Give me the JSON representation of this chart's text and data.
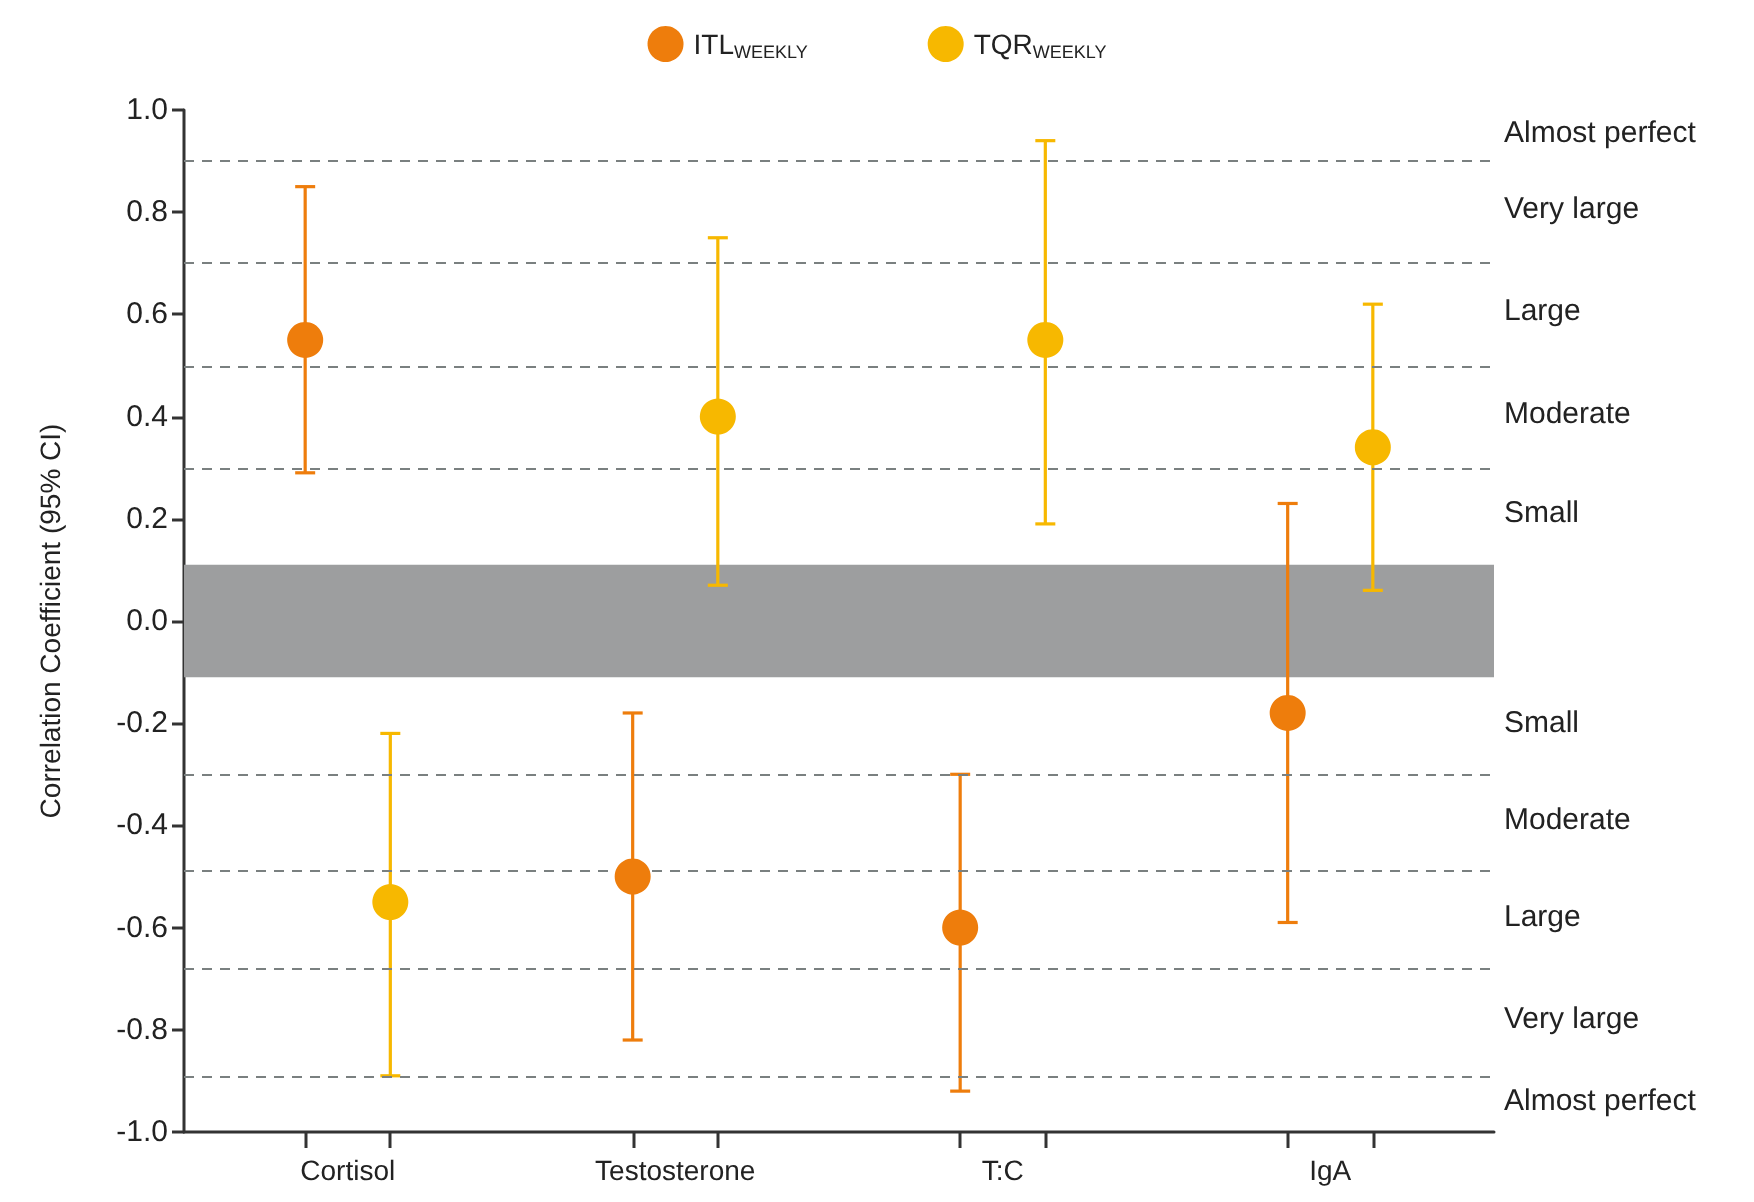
{
  "chart_data": {
    "type": "scatter",
    "ylabel": "Correlation Coefficient (95% CI)",
    "categories": [
      "Cortisol",
      "Testosterone",
      "T:C",
      "IgA"
    ],
    "series": [
      {
        "name": "ITL$_{WEEKLY}$",
        "color": "#ee7d0c",
        "values": [
          0.55,
          -0.5,
          -0.6,
          -0.18
        ],
        "errors": [
          [
            0.29,
            0.85
          ],
          [
            -0.82,
            -0.18
          ],
          [
            -0.92,
            -0.3
          ],
          [
            -0.59,
            0.23
          ]
        ]
      },
      {
        "name": "TQR$_{WEEKLY}$",
        "color": "#f7b800",
        "values": [
          -0.55,
          0.4,
          0.55,
          0.34
        ],
        "errors": [
          [
            -0.89,
            -0.22
          ],
          [
            0.07,
            0.75
          ],
          [
            0.19,
            0.94
          ],
          [
            0.06,
            0.62
          ]
        ]
      }
    ],
    "ylim": [
      -1,
      1
    ],
    "yticks": [
      {
        "value": -1,
        "label": "-1.0"
      },
      {
        "value": -0.8,
        "label": "-0.8"
      },
      {
        "value": -0.6,
        "label": "-0.6"
      },
      {
        "value": -0.4,
        "label": "-0.4"
      },
      {
        "value": -0.2,
        "label": "-0.2"
      },
      {
        "value": 0,
        "label": "0.0"
      },
      {
        "value": 0.2,
        "label": "0.2"
      },
      {
        "value": 0.4,
        "label": "0.4"
      },
      {
        "value": 0.6,
        "label": "0.6"
      },
      {
        "value": 0.8,
        "label": "0.8"
      },
      {
        "value": 1,
        "label": "1.0"
      }
    ],
    "ref_lines": [
      {
        "axis": "y",
        "value": 0.9,
        "color": "#7a8080",
        "line_style": "dashed"
      },
      {
        "axis": "y",
        "value": 0.7,
        "color": "#7a8080",
        "line_style": "dashed"
      },
      {
        "axis": "y",
        "value": 0.5,
        "color": "#7a8080",
        "line_style": "dashed"
      },
      {
        "axis": "y",
        "value": 0.3,
        "color": "#7a8080",
        "line_style": "dashed"
      },
      {
        "axis": "y",
        "value": -0.3,
        "color": "#7a8080",
        "line_style": "dashed"
      },
      {
        "axis": "y",
        "value": -0.49,
        "color": "#7a8080",
        "line_style": "dashed"
      },
      {
        "axis": "y",
        "value": -0.68,
        "color": "#7a8080",
        "line_style": "dashed"
      },
      {
        "axis": "y",
        "value": -0.89,
        "color": "#7a8080",
        "line_style": "dashed"
      }
    ],
    "bands": [
      {
        "axis": "y",
        "from": -0.11,
        "to": 0.11,
        "color": "#9d9e9f"
      }
    ],
    "annotations": [
      "Almost perfect",
      "Very large",
      "Large",
      "Moderate",
      "Small",
      "Small",
      "Moderate",
      "Large",
      "Very large",
      "Almost perfect"
    ],
    "legend": "top",
    "marker": "circle"
  }
}
